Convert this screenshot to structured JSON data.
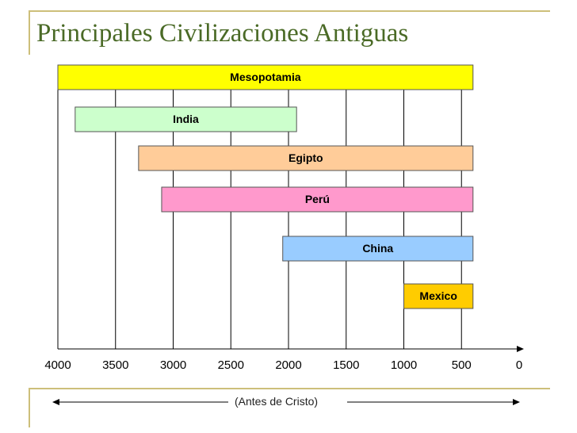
{
  "title": "Principales Civilizaciones Antiguas",
  "subcaption": "(Antes de Cristo)",
  "colors": {
    "title": "#4a6a26",
    "deco": "#cdbf7a"
  },
  "chart_data": {
    "type": "bar",
    "orientation": "horizontal-range",
    "x_ticks": [
      4000,
      3500,
      3000,
      2500,
      2000,
      1500,
      1000,
      500,
      0
    ],
    "xlim": [
      4000,
      0
    ],
    "grid": true,
    "xlabel": "(Antes de Cristo)",
    "series": [
      {
        "name": "Mesopotamia",
        "start": 4000,
        "end": 400,
        "color": "#ffff00"
      },
      {
        "name": "India",
        "start": 3850,
        "end": 1930,
        "color": "#ccffcc"
      },
      {
        "name": "Egipto",
        "start": 3300,
        "end": 400,
        "color": "#ffcc99"
      },
      {
        "name": "Perú",
        "start": 3100,
        "end": 400,
        "color": "#ff99cc"
      },
      {
        "name": "China",
        "start": 2050,
        "end": 400,
        "color": "#99ccff"
      },
      {
        "name": "Mexico",
        "start": 1000,
        "end": 400,
        "color": "#ffcc00"
      }
    ]
  }
}
